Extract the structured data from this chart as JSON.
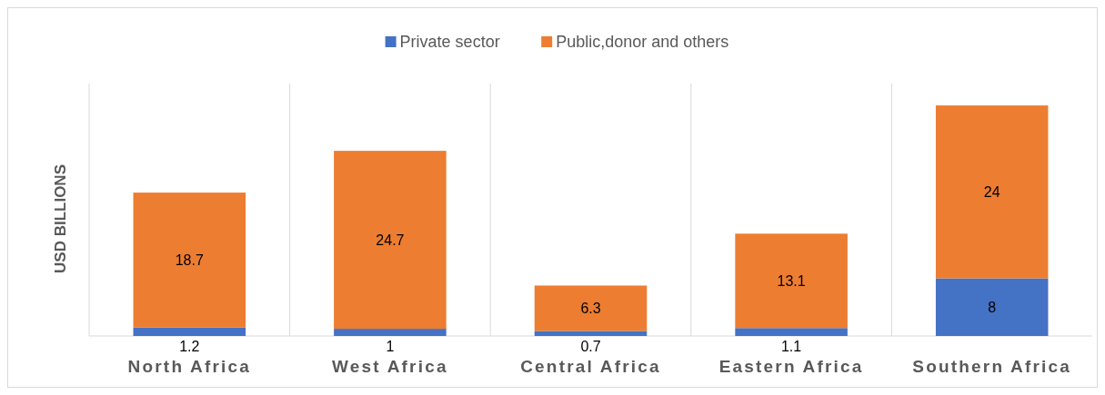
{
  "chart_data": {
    "type": "bar",
    "stacked": true,
    "ylabel": "USD BILLIONS",
    "categories": [
      "North Africa",
      "West Africa",
      "Central Africa",
      "Eastern Africa",
      "Southern Africa"
    ],
    "series": [
      {
        "name": "Private sector",
        "color": "#4472c4",
        "values": [
          1.2,
          1,
          0.7,
          1.1,
          8
        ]
      },
      {
        "name": "Public,donor and others",
        "color": "#ed7d31",
        "values": [
          18.7,
          24.7,
          6.3,
          13.1,
          24
        ]
      }
    ],
    "data_labels": true,
    "grid": "x",
    "legend": "top"
  }
}
